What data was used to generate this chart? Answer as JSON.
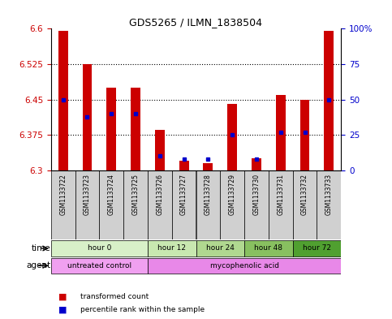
{
  "title": "GDS5265 / ILMN_1838504",
  "samples": [
    "GSM1133722",
    "GSM1133723",
    "GSM1133724",
    "GSM1133725",
    "GSM1133726",
    "GSM1133727",
    "GSM1133728",
    "GSM1133729",
    "GSM1133730",
    "GSM1133731",
    "GSM1133732",
    "GSM1133733"
  ],
  "transformed_count": [
    6.595,
    6.525,
    6.475,
    6.475,
    6.385,
    6.32,
    6.315,
    6.44,
    6.325,
    6.46,
    6.45,
    6.595
  ],
  "percentile_rank": [
    50,
    38,
    40,
    40,
    10,
    8,
    8,
    25,
    8,
    27,
    27,
    50
  ],
  "ylim": [
    6.3,
    6.6
  ],
  "yticks": [
    6.3,
    6.375,
    6.45,
    6.525,
    6.6
  ],
  "ytick_labels": [
    "6.3",
    "6.375",
    "6.45",
    "6.525",
    "6.6"
  ],
  "right_yticks": [
    0,
    25,
    50,
    75,
    100
  ],
  "right_ylabels": [
    "0",
    "25",
    "50",
    "75",
    "100%"
  ],
  "time_groups": [
    {
      "label": "hour 0",
      "start": 0,
      "end": 4,
      "color": "#d8f0c8"
    },
    {
      "label": "hour 12",
      "start": 4,
      "end": 6,
      "color": "#c8e8b0"
    },
    {
      "label": "hour 24",
      "start": 6,
      "end": 8,
      "color": "#b0d890"
    },
    {
      "label": "hour 48",
      "start": 8,
      "end": 10,
      "color": "#88c060"
    },
    {
      "label": "hour 72",
      "start": 10,
      "end": 12,
      "color": "#50a030"
    }
  ],
  "agent_groups": [
    {
      "label": "untreated control",
      "start": 0,
      "end": 4,
      "color": "#f0a0f0"
    },
    {
      "label": "mycophenolic acid",
      "start": 4,
      "end": 12,
      "color": "#e888e8"
    }
  ],
  "bar_color": "#cc0000",
  "dot_color": "#0000cc",
  "left_tick_color": "#cc0000",
  "right_tick_color": "#0000cc",
  "bar_width": 0.4
}
